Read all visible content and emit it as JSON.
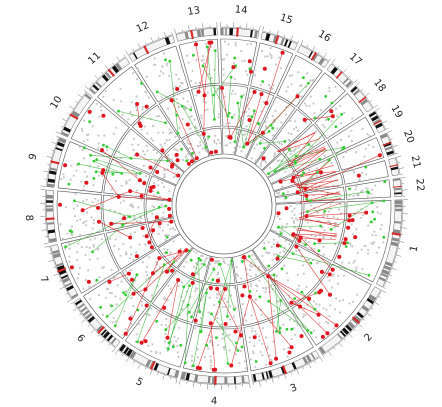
{
  "figure": {
    "chromosomes": [
      {
        "label": "1",
        "size": 249
      },
      {
        "label": "2",
        "size": 243
      },
      {
        "label": "3",
        "size": 198
      },
      {
        "label": "4",
        "size": 191
      },
      {
        "label": "5",
        "size": 181
      },
      {
        "label": "6",
        "size": 171
      },
      {
        "label": "7",
        "size": 159
      },
      {
        "label": "8",
        "size": 146
      },
      {
        "label": "9",
        "size": 141
      },
      {
        "label": "10",
        "size": 136
      },
      {
        "label": "11",
        "size": 135
      },
      {
        "label": "12",
        "size": 134
      },
      {
        "label": "13",
        "size": 115
      },
      {
        "label": "14",
        "size": 107
      },
      {
        "label": "15",
        "size": 102
      },
      {
        "label": "16",
        "size": 90
      },
      {
        "label": "17",
        "size": 81
      },
      {
        "label": "18",
        "size": 78
      },
      {
        "label": "19",
        "size": 59
      },
      {
        "label": "20",
        "size": 63
      },
      {
        "label": "21",
        "size": 48
      },
      {
        "label": "22",
        "size": 51
      }
    ],
    "tracks": [
      "ideogram",
      "outer-scatter",
      "middle-scatter",
      "inner-scatter",
      "links"
    ],
    "colors": {
      "background_points": "#c8c8c8",
      "highlight_red": "#e0141e",
      "highlight_green": "#33cc33",
      "link_red": "#d40000",
      "link_green": "#1faa1f",
      "band_dark": "#111111",
      "band_mid": "#8a8a8a",
      "centromere": "#d62828",
      "ring_line": "#555555"
    }
  }
}
